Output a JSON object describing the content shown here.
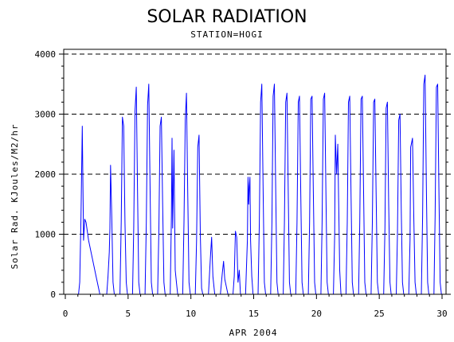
{
  "chart_data": {
    "type": "line",
    "title": "SOLAR RADIATION",
    "subtitle": "STATION=HOGI",
    "xlabel": "APR 2004",
    "ylabel": "Solar Rad. KJoules/M2/hr",
    "xlim": [
      0,
      30
    ],
    "ylim": [
      0,
      4000
    ],
    "x_ticks": [
      0,
      5,
      10,
      15,
      20,
      25,
      30
    ],
    "y_ticks": [
      0,
      1000,
      2000,
      3000,
      4000
    ],
    "grid": "horizontal dashed",
    "series": [
      {
        "color": "#0000ff",
        "x": [
          0,
          1.05,
          1.15,
          1.25,
          1.35,
          1.45,
          1.55,
          1.65,
          1.75,
          1.85,
          2.15,
          2.45,
          2.75,
          3.05,
          3.3,
          3.4,
          3.5,
          3.55,
          3.6,
          3.7,
          3.8,
          3.9,
          4.05,
          4.35,
          4.45,
          4.55,
          4.65,
          4.75,
          4.85,
          4.95,
          5.05,
          5.35,
          5.45,
          5.55,
          5.65,
          5.75,
          5.85,
          5.95,
          6.05,
          6.35,
          6.45,
          6.55,
          6.65,
          6.75,
          6.85,
          6.95,
          7.05,
          7.35,
          7.45,
          7.55,
          7.65,
          7.75,
          7.85,
          7.95,
          8.05,
          8.35,
          8.45,
          8.5,
          8.55,
          8.65,
          8.75,
          8.85,
          8.95,
          9.05,
          9.35,
          9.45,
          9.55,
          9.65,
          9.75,
          9.85,
          9.95,
          10.05,
          10.35,
          10.45,
          10.55,
          10.65,
          10.75,
          10.85,
          10.95,
          11.05,
          11.4,
          11.55,
          11.65,
          11.75,
          11.9,
          12.05,
          12.35,
          12.5,
          12.6,
          12.7,
          12.8,
          12.95,
          13.05,
          13.35,
          13.45,
          13.55,
          13.65,
          13.75,
          13.85,
          13.95,
          14.05,
          14.35,
          14.5,
          14.55,
          14.6,
          14.65,
          14.7,
          14.75,
          14.85,
          14.95,
          15.05,
          15.35,
          15.45,
          15.55,
          15.65,
          15.75,
          15.85,
          15.95,
          16.05,
          16.35,
          16.45,
          16.55,
          16.65,
          16.75,
          16.85,
          16.95,
          17.05,
          17.35,
          17.45,
          17.55,
          17.65,
          17.75,
          17.85,
          17.95,
          18.05,
          18.35,
          18.45,
          18.55,
          18.65,
          18.75,
          18.85,
          18.95,
          19.05,
          19.35,
          19.45,
          19.55,
          19.65,
          19.75,
          19.85,
          19.95,
          20.05,
          20.35,
          20.45,
          20.55,
          20.65,
          20.75,
          20.85,
          20.95,
          21.05,
          21.35,
          21.45,
          21.5,
          21.6,
          21.7,
          21.85,
          21.95,
          22.05,
          22.35,
          22.45,
          22.55,
          22.65,
          22.75,
          22.85,
          22.95,
          23.05,
          23.35,
          23.45,
          23.55,
          23.65,
          23.75,
          23.85,
          23.95,
          24.05,
          24.35,
          24.45,
          24.55,
          24.65,
          24.75,
          24.85,
          24.95,
          25.05,
          25.35,
          25.45,
          25.55,
          25.65,
          25.75,
          25.85,
          25.95,
          26.05,
          26.35,
          26.45,
          26.55,
          26.65,
          26.75,
          26.85,
          26.95,
          27.05,
          27.35,
          27.45,
          27.5,
          27.55,
          27.65,
          27.75,
          27.85,
          27.95,
          28.05,
          28.35,
          28.45,
          28.55,
          28.65,
          28.75,
          28.85,
          28.95,
          29.05,
          29.35,
          29.45,
          29.55,
          29.65,
          29.75,
          29.85,
          29.95,
          30
        ],
        "y": [
          0,
          0,
          200,
          1300,
          2800,
          900,
          1250,
          1200,
          1050,
          900,
          600,
          300,
          0,
          0,
          0,
          300,
          700,
          1100,
          2150,
          1300,
          200,
          0,
          0,
          0,
          1200,
          2950,
          2800,
          1200,
          200,
          0,
          0,
          0,
          1100,
          3050,
          3450,
          1700,
          200,
          0,
          0,
          0,
          1200,
          3150,
          3500,
          1800,
          200,
          0,
          0,
          0,
          1100,
          2800,
          2950,
          1500,
          200,
          0,
          0,
          0,
          1300,
          2600,
          1100,
          2400,
          400,
          200,
          0,
          0,
          0,
          1200,
          2900,
          3350,
          1700,
          200,
          0,
          0,
          0,
          900,
          2450,
          2650,
          1000,
          100,
          0,
          0,
          0,
          600,
          950,
          300,
          0,
          0,
          0,
          350,
          550,
          250,
          150,
          0,
          0,
          0,
          300,
          1050,
          950,
          200,
          400,
          0,
          0,
          0,
          900,
          1950,
          1500,
          1800,
          1950,
          900,
          300,
          0,
          0,
          0,
          1200,
          3200,
          3500,
          1800,
          200,
          0,
          0,
          0,
          1200,
          3300,
          3500,
          1800,
          200,
          0,
          0,
          0,
          1200,
          3200,
          3350,
          1700,
          200,
          0,
          0,
          0,
          1200,
          3200,
          3300,
          1700,
          200,
          0,
          0,
          0,
          1200,
          3250,
          3300,
          1700,
          200,
          0,
          0,
          0,
          1200,
          3250,
          3350,
          1700,
          200,
          0,
          0,
          0,
          1000,
          2650,
          2000,
          2500,
          400,
          0,
          0,
          0,
          1200,
          3200,
          3300,
          1700,
          200,
          0,
          0,
          0,
          1200,
          3250,
          3300,
          1700,
          200,
          0,
          0,
          0,
          1200,
          3200,
          3250,
          1700,
          200,
          0,
          0,
          0,
          1100,
          3100,
          3200,
          1500,
          200,
          0,
          0,
          0,
          1000,
          2900,
          3000,
          1400,
          200,
          0,
          0,
          0,
          900,
          2450,
          2500,
          2600,
          1300,
          200,
          0,
          0,
          0,
          1300,
          3500,
          3650,
          1800,
          200,
          0,
          0,
          0,
          1300,
          3450,
          3500,
          1700,
          200,
          0,
          0
        ]
      }
    ]
  }
}
